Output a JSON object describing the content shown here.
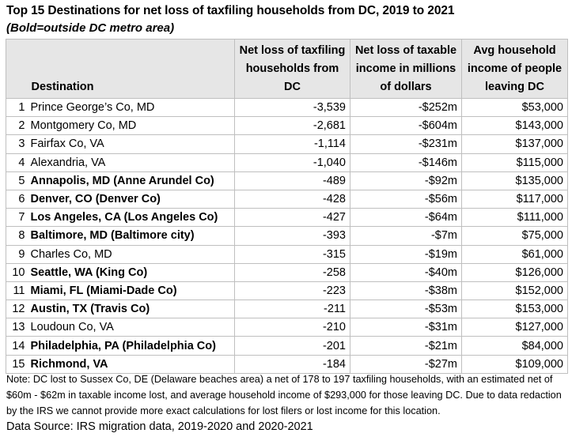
{
  "title": "Top 15 Destinations for net loss of taxfiling households from DC, 2019 to 2021",
  "subtitle": "(Bold=outside DC metro area)",
  "columns": {
    "destination": "Destination",
    "households": "Net loss of taxfiling households from DC",
    "income": "Net loss of taxable income in millions of dollars",
    "avg_income": "Avg household income of people leaving DC"
  },
  "rows": [
    {
      "rank": "1",
      "destination": "Prince George’s Co, MD",
      "households": "-3,539",
      "income": "-$252m",
      "avg": "$53,000",
      "bold": false
    },
    {
      "rank": "2",
      "destination": "Montgomery Co, MD",
      "households": "-2,681",
      "income": "-$604m",
      "avg": "$143,000",
      "bold": false
    },
    {
      "rank": "3",
      "destination": "Fairfax Co, VA",
      "households": "-1,114",
      "income": "-$231m",
      "avg": "$137,000",
      "bold": false
    },
    {
      "rank": "4",
      "destination": "Alexandria, VA",
      "households": "-1,040",
      "income": "-$146m",
      "avg": "$115,000",
      "bold": false
    },
    {
      "rank": "5",
      "destination": "Annapolis, MD (Anne Arundel Co)",
      "households": "-489",
      "income": "-$92m",
      "avg": "$135,000",
      "bold": true
    },
    {
      "rank": "6",
      "destination": "Denver, CO (Denver Co)",
      "households": "-428",
      "income": "-$56m",
      "avg": "$117,000",
      "bold": true
    },
    {
      "rank": "7",
      "destination": "Los Angeles, CA (Los Angeles Co)",
      "households": "-427",
      "income": "-$64m",
      "avg": "$111,000",
      "bold": true
    },
    {
      "rank": "8",
      "destination": "Baltimore, MD (Baltimore city)",
      "households": "-393",
      "income": "-$7m",
      "avg": "$75,000",
      "bold": true
    },
    {
      "rank": "9",
      "destination": "Charles Co, MD",
      "households": "-315",
      "income": "-$19m",
      "avg": "$61,000",
      "bold": false
    },
    {
      "rank": "10",
      "destination": "Seattle, WA (King Co)",
      "households": "-258",
      "income": "-$40m",
      "avg": "$126,000",
      "bold": true
    },
    {
      "rank": "11",
      "destination": "Miami, FL (Miami-Dade Co)",
      "households": "-223",
      "income": "-$38m",
      "avg": "$152,000",
      "bold": true
    },
    {
      "rank": "12",
      "destination": "Austin, TX (Travis Co)",
      "households": "-211",
      "income": "-$53m",
      "avg": "$153,000",
      "bold": true
    },
    {
      "rank": "13",
      "destination": "Loudoun Co, VA",
      "households": "-210",
      "income": "-$31m",
      "avg": "$127,000",
      "bold": false
    },
    {
      "rank": "14",
      "destination": "Philadelphia, PA (Philadelphia Co)",
      "households": "-201",
      "income": "-$21m",
      "avg": "$84,000",
      "bold": true
    },
    {
      "rank": "15",
      "destination": "Richmond, VA",
      "households": "-184",
      "income": "-$27m",
      "avg": "$109,000",
      "bold": true
    }
  ],
  "note": "Note: DC lost to Sussex Co, DE (Delaware beaches area) a net of 178 to 197 taxfiling households, with an estimated net of $60m - $62m in taxable income lost, and average household income of $293,000 for those leaving DC. Due to data redaction by the IRS we cannot provide more exact calculations for lost filers or lost income for this location.",
  "source": "Data Source: IRS migration data, 2019-2020 and 2020-2021"
}
